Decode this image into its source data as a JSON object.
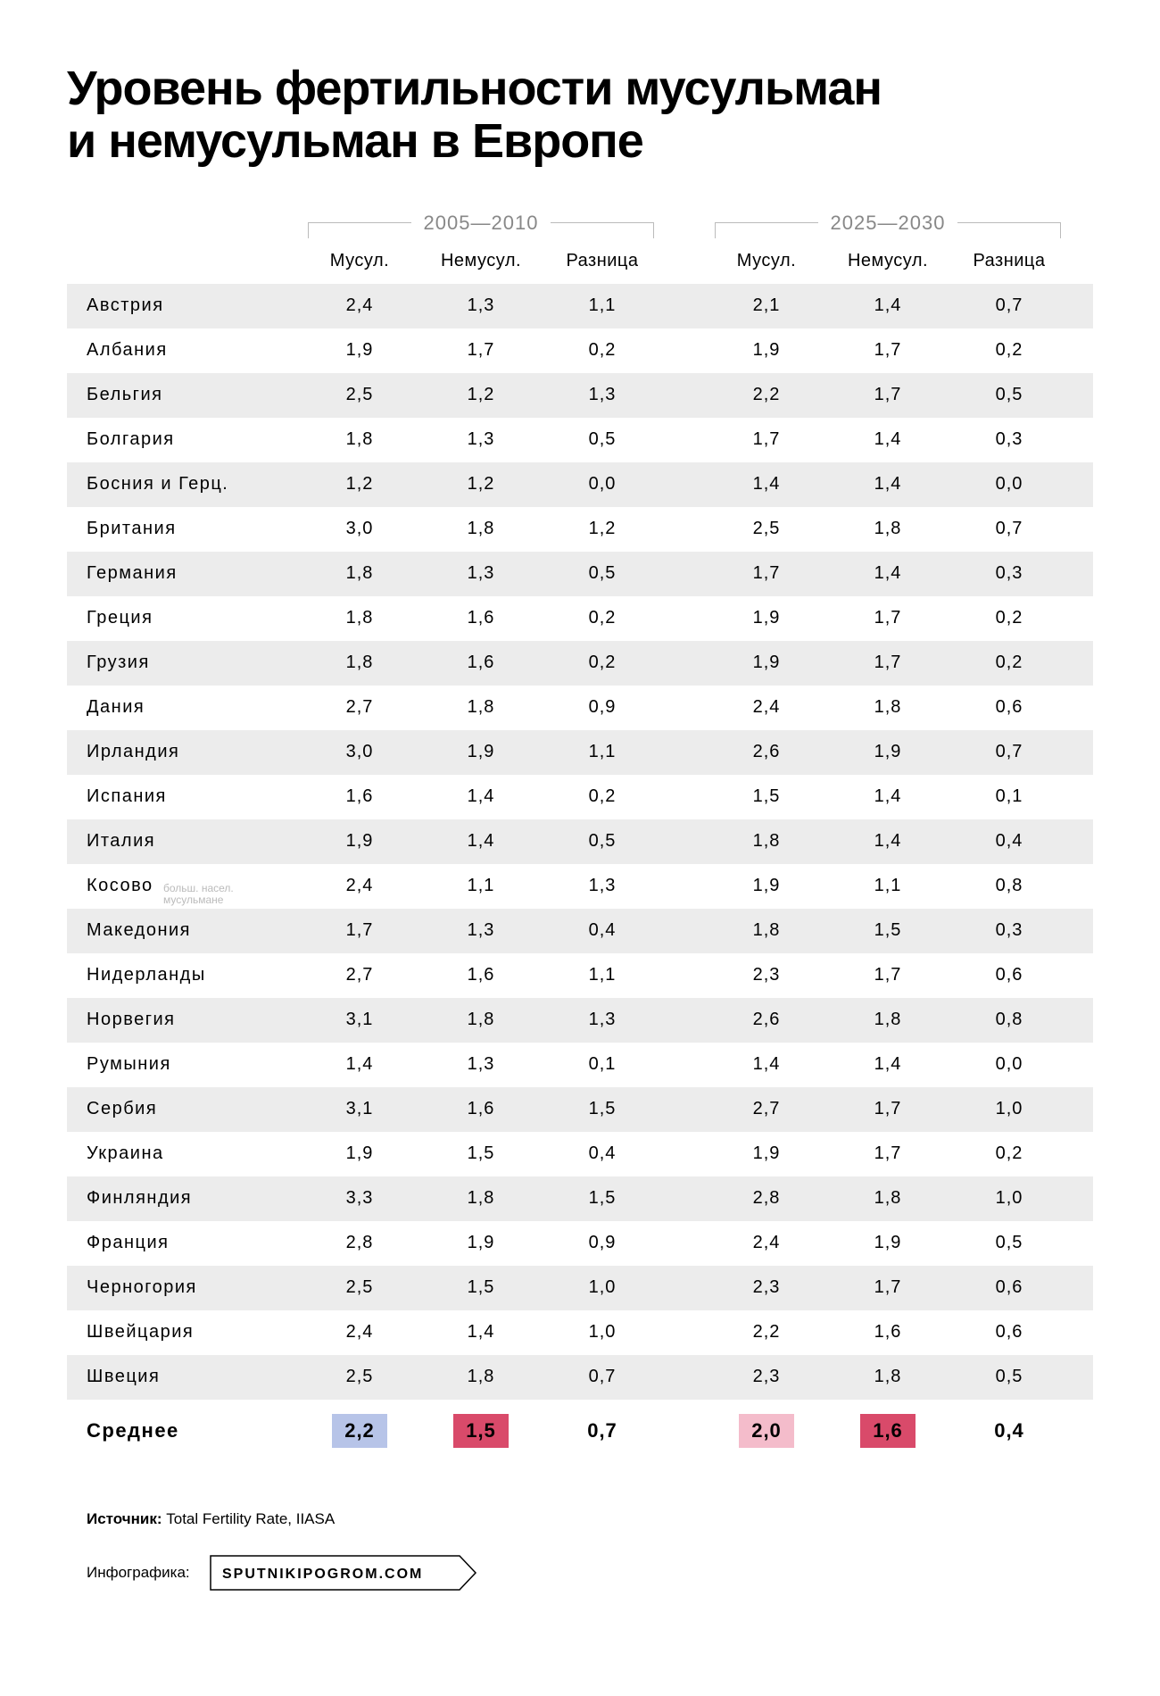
{
  "title_line1": "Уровень фертильности мусульман",
  "title_line2": "и немусульман в Европе",
  "periods": {
    "p1": "2005—2010",
    "p2": "2025—2030"
  },
  "columns": {
    "c1": "Мусул.",
    "c2": "Немусул.",
    "c3": "Разница"
  },
  "kosovo_note_line1": "больш. насел.",
  "kosovo_note_line2": "мусульмане",
  "rows": [
    {
      "country": "Австрия",
      "a": "2,4",
      "b": "1,3",
      "c": "1,1",
      "d": "2,1",
      "e": "1,4",
      "f": "0,7"
    },
    {
      "country": "Албания",
      "a": "1,9",
      "b": "1,7",
      "c": "0,2",
      "d": "1,9",
      "e": "1,7",
      "f": "0,2"
    },
    {
      "country": "Бельгия",
      "a": "2,5",
      "b": "1,2",
      "c": "1,3",
      "d": "2,2",
      "e": "1,7",
      "f": "0,5"
    },
    {
      "country": "Болгария",
      "a": "1,8",
      "b": "1,3",
      "c": "0,5",
      "d": "1,7",
      "e": "1,4",
      "f": "0,3"
    },
    {
      "country": "Босния и Герц.",
      "a": "1,2",
      "b": "1,2",
      "c": "0,0",
      "d": "1,4",
      "e": "1,4",
      "f": "0,0"
    },
    {
      "country": "Британия",
      "a": "3,0",
      "b": "1,8",
      "c": "1,2",
      "d": "2,5",
      "e": "1,8",
      "f": "0,7"
    },
    {
      "country": "Германия",
      "a": "1,8",
      "b": "1,3",
      "c": "0,5",
      "d": "1,7",
      "e": "1,4",
      "f": "0,3"
    },
    {
      "country": "Греция",
      "a": "1,8",
      "b": "1,6",
      "c": "0,2",
      "d": "1,9",
      "e": "1,7",
      "f": "0,2"
    },
    {
      "country": "Грузия",
      "a": "1,8",
      "b": "1,6",
      "c": "0,2",
      "d": "1,9",
      "e": "1,7",
      "f": "0,2"
    },
    {
      "country": "Дания",
      "a": "2,7",
      "b": "1,8",
      "c": "0,9",
      "d": "2,4",
      "e": "1,8",
      "f": "0,6"
    },
    {
      "country": "Ирландия",
      "a": "3,0",
      "b": "1,9",
      "c": "1,1",
      "d": "2,6",
      "e": "1,9",
      "f": "0,7"
    },
    {
      "country": "Испания",
      "a": "1,6",
      "b": "1,4",
      "c": "0,2",
      "d": "1,5",
      "e": "1,4",
      "f": "0,1"
    },
    {
      "country": "Италия",
      "a": "1,9",
      "b": "1,4",
      "c": "0,5",
      "d": "1,8",
      "e": "1,4",
      "f": "0,4"
    },
    {
      "country": "Косово",
      "a": "2,4",
      "b": "1,1",
      "c": "1,3",
      "d": "1,9",
      "e": "1,1",
      "f": "0,8",
      "note": true
    },
    {
      "country": "Македония",
      "a": "1,7",
      "b": "1,3",
      "c": "0,4",
      "d": "1,8",
      "e": "1,5",
      "f": "0,3"
    },
    {
      "country": "Нидерланды",
      "a": "2,7",
      "b": "1,6",
      "c": "1,1",
      "d": "2,3",
      "e": "1,7",
      "f": "0,6"
    },
    {
      "country": "Норвегия",
      "a": "3,1",
      "b": "1,8",
      "c": "1,3",
      "d": "2,6",
      "e": "1,8",
      "f": "0,8"
    },
    {
      "country": "Румыния",
      "a": "1,4",
      "b": "1,3",
      "c": "0,1",
      "d": "1,4",
      "e": "1,4",
      "f": "0,0"
    },
    {
      "country": "Сербия",
      "a": "3,1",
      "b": "1,6",
      "c": "1,5",
      "d": "2,7",
      "e": "1,7",
      "f": "1,0"
    },
    {
      "country": "Украина",
      "a": "1,9",
      "b": "1,5",
      "c": "0,4",
      "d": "1,9",
      "e": "1,7",
      "f": "0,2"
    },
    {
      "country": "Финляндия",
      "a": "3,3",
      "b": "1,8",
      "c": "1,5",
      "d": "2,8",
      "e": "1,8",
      "f": "1,0"
    },
    {
      "country": "Франция",
      "a": "2,8",
      "b": "1,9",
      "c": "0,9",
      "d": "2,4",
      "e": "1,9",
      "f": "0,5"
    },
    {
      "country": "Черногория",
      "a": "2,5",
      "b": "1,5",
      "c": "1,0",
      "d": "2,3",
      "e": "1,7",
      "f": "0,6"
    },
    {
      "country": "Швейцария",
      "a": "2,4",
      "b": "1,4",
      "c": "1,0",
      "d": "2,2",
      "e": "1,6",
      "f": "0,6"
    },
    {
      "country": "Швеция",
      "a": "2,5",
      "b": "1,8",
      "c": "0,7",
      "d": "2,3",
      "e": "1,8",
      "f": "0,5"
    }
  ],
  "average": {
    "label": "Среднее",
    "a": "2,2",
    "b": "1,5",
    "c": "0,7",
    "d": "2,0",
    "e": "1,6",
    "f": "0,4"
  },
  "highlight_colors": {
    "a": "#b7c4e8",
    "b": "#d94a6a",
    "d": "#f4bccb",
    "e": "#d94a6a"
  },
  "stripe_color": "#ececec",
  "source_label": "Источник:",
  "source_text": "Total Fertility Rate, IIASA",
  "infographic_label": "Инфографика:",
  "site": "SPUTNIKIPOGROM.COM"
}
